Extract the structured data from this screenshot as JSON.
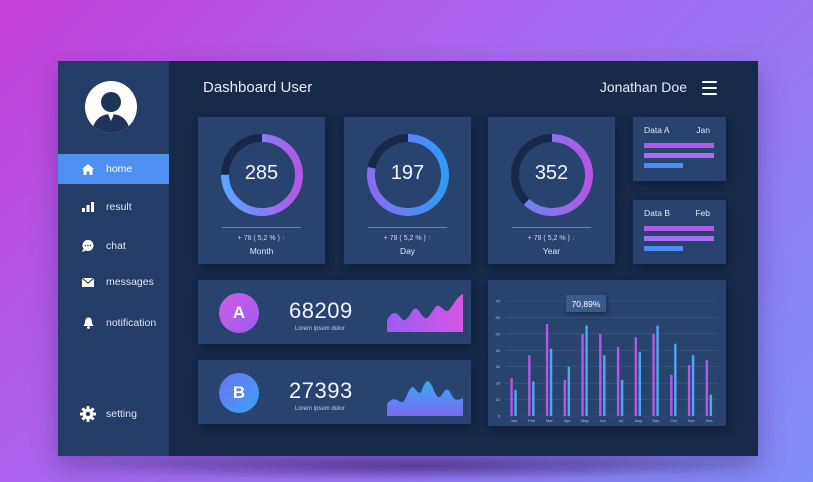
{
  "header": {
    "title": "Dashboard User",
    "user_name": "Jonathan Doe"
  },
  "sidebar": {
    "items": [
      {
        "label": "home",
        "icon": "home-icon",
        "active": true
      },
      {
        "label": "result",
        "icon": "bar-chart-icon",
        "active": false
      },
      {
        "label": "chat",
        "icon": "chat-icon",
        "active": false
      },
      {
        "label": "messages",
        "icon": "envelope-icon",
        "active": false
      },
      {
        "label": "notification",
        "icon": "bell-icon",
        "active": false
      }
    ],
    "setting": {
      "label": "setting",
      "icon": "gear-icon"
    }
  },
  "rings": [
    {
      "value": "285",
      "change": "+ 78 ( 5,2 % )",
      "direction": "up",
      "period": "Month",
      "fraction": 0.75,
      "colors": [
        "#5aa6ff",
        "#b456e6"
      ]
    },
    {
      "value": "197",
      "change": "+ 78 ( 5,2 % )",
      "direction": "up",
      "period": "Day",
      "fraction": 0.78,
      "colors": [
        "#8a6cf0",
        "#2f9af7"
      ]
    },
    {
      "value": "352",
      "change": "+ 78 ( 5,2 % )",
      "direction": "down",
      "period": "Year",
      "fraction": 0.62,
      "colors": [
        "#5f8df2",
        "#b456e6"
      ]
    }
  ],
  "data_cards": [
    {
      "label": "Data A",
      "month": "Jan",
      "bars": [
        {
          "fraction": 0.98,
          "color": "#b05ae8"
        },
        {
          "fraction": 0.98,
          "color": "#a66df0"
        },
        {
          "fraction": 0.55,
          "color": "#4a8ef5"
        }
      ]
    },
    {
      "label": "Data B",
      "month": "Feb",
      "bars": [
        {
          "fraction": 0.98,
          "color": "#b05ae8"
        },
        {
          "fraction": 0.98,
          "color": "#a66df0"
        },
        {
          "fraction": 0.55,
          "color": "#4a8ef5"
        }
      ]
    }
  ],
  "stats": [
    {
      "badge": "A",
      "value": "68209",
      "sub": "Lorem ipsum dolor"
    },
    {
      "badge": "B",
      "value": "27393",
      "sub": "Lorem ipsum dolor"
    }
  ],
  "chart_data": {
    "type": "bar",
    "tooltip": "70,89%",
    "categories": [
      "Jan",
      "Feb",
      "Mar",
      "Apr",
      "May",
      "Jun",
      "Jul",
      "Aug",
      "Sep",
      "Oct",
      "Nov",
      "Dec"
    ],
    "y_ticks": [
      "70",
      "60",
      "50",
      "40",
      "30",
      "20",
      "10",
      "0"
    ],
    "ylim": [
      0,
      70
    ],
    "series": [
      {
        "color": "#b456e6",
        "values": [
          23,
          37,
          56,
          22,
          50,
          50,
          42,
          48,
          50,
          25,
          31,
          34
        ]
      },
      {
        "color": "#4fa7f5",
        "values": [
          16,
          21,
          41,
          30,
          55,
          37,
          22,
          39,
          55,
          44,
          37,
          13
        ]
      }
    ],
    "grid": true,
    "legend": "none"
  },
  "colors": {
    "background": "#172a4a",
    "panel": "#27436e",
    "sidebar": "#233d66",
    "accent": "#4f8ff0",
    "purple": "#b456e6",
    "blue": "#4fa7f5"
  }
}
